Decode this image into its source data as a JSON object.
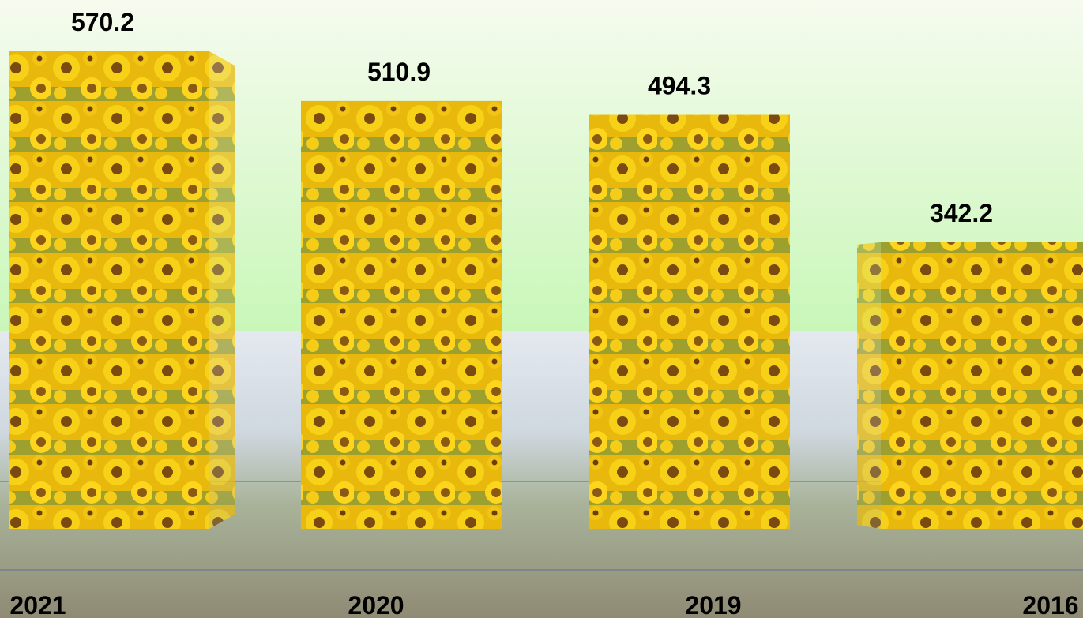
{
  "chart_data": {
    "type": "bar",
    "categories": [
      "2021",
      "2020",
      "2019",
      "2016"
    ],
    "values": [
      570.2,
      510.9,
      494.3,
      342.2
    ]
  }
}
